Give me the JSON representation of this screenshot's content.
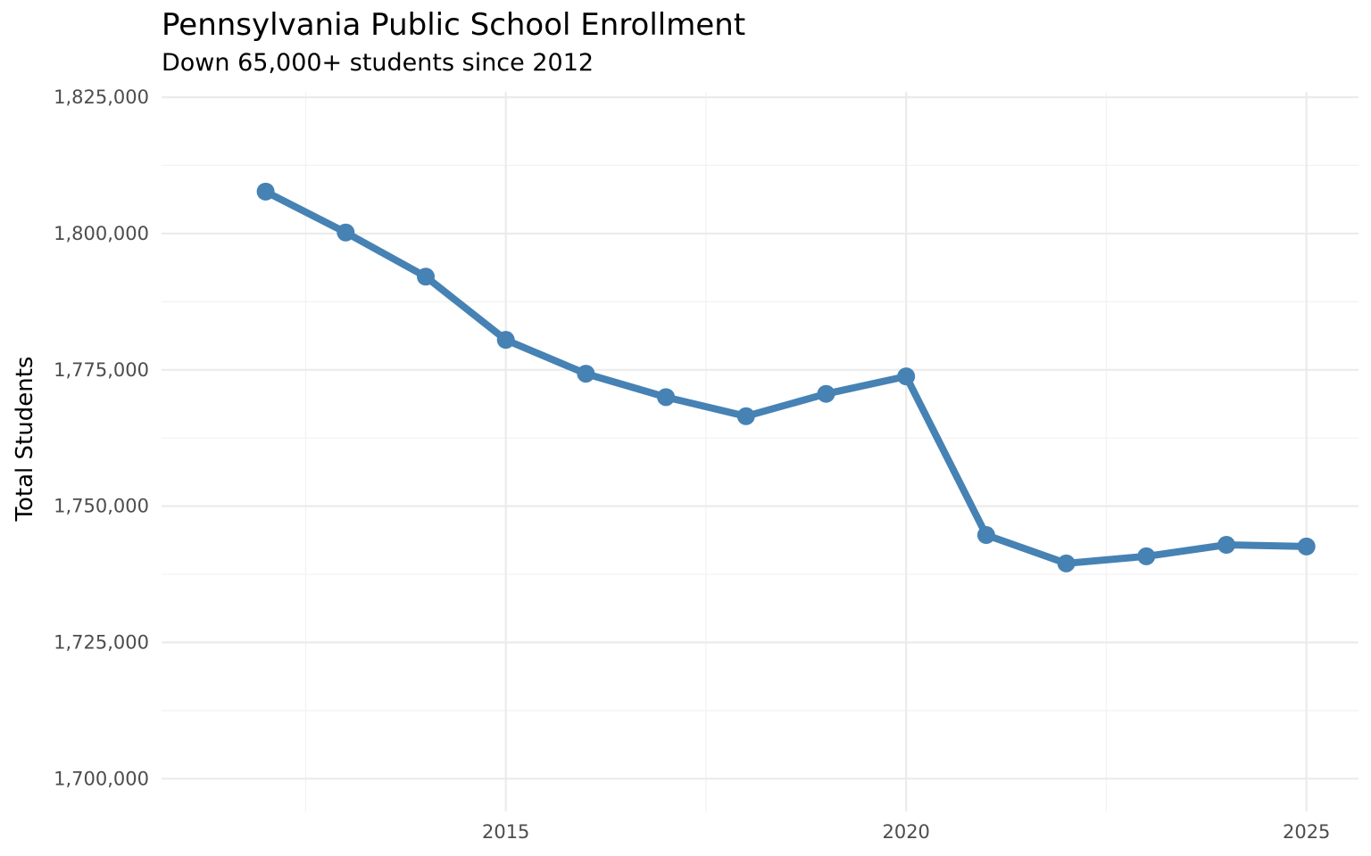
{
  "chart_data": {
    "type": "line",
    "title": "Pennsylvania Public School Enrollment",
    "subtitle": "Down 65,000+ students since 2012",
    "xlabel": "",
    "ylabel": "Total Students",
    "x": [
      2012,
      2013,
      2014,
      2015,
      2016,
      2017,
      2018,
      2019,
      2020,
      2021,
      2022,
      2023,
      2024,
      2025
    ],
    "series": [
      {
        "values": [
          1807700,
          1800200,
          1792100,
          1780500,
          1774300,
          1770000,
          1766500,
          1770600,
          1773800,
          1744700,
          1739500,
          1740800,
          1742900,
          1742600
        ]
      }
    ],
    "xlim": [
      2010.7,
      2025.65
    ],
    "ylim": [
      1694000,
      1826000
    ],
    "x_ticks": [
      2015,
      2020,
      2025
    ],
    "x_tick_labels": [
      "2015",
      "2020",
      "2025"
    ],
    "y_ticks": [
      1700000,
      1725000,
      1750000,
      1775000,
      1800000,
      1825000
    ],
    "y_tick_labels": [
      "1,700,000",
      "1,725,000",
      "1,750,000",
      "1,775,000",
      "1,800,000",
      "1,825,000"
    ],
    "grid": true,
    "legend": "none",
    "colors": {
      "line": "#4682B4",
      "grid_major": "#EBEBEB",
      "grid_minor": "#F2F2F2"
    }
  }
}
